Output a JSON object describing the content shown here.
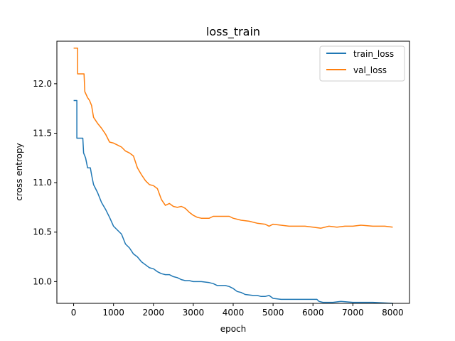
{
  "chart_data": {
    "type": "line",
    "title": "loss_train",
    "xlabel": "epoch",
    "ylabel": "cross entropy",
    "xlim": [
      -420,
      8420
    ],
    "ylim": [
      9.78,
      12.43
    ],
    "xticks": [
      0,
      1000,
      2000,
      3000,
      4000,
      5000,
      6000,
      7000,
      8000
    ],
    "xtick_labels": [
      "0",
      "1000",
      "2000",
      "3000",
      "4000",
      "5000",
      "6000",
      "7000",
      "8000"
    ],
    "yticks": [
      10.0,
      10.5,
      11.0,
      11.5,
      12.0
    ],
    "ytick_labels": [
      "10.0",
      "10.5",
      "11.0",
      "11.5",
      "12.0"
    ],
    "grid": false,
    "legend_position": "top-right",
    "series": [
      {
        "name": "train_loss",
        "color": "#1f77b4",
        "points": [
          [
            0,
            11.83
          ],
          [
            80,
            11.83
          ],
          [
            80,
            11.45
          ],
          [
            120,
            11.45
          ],
          [
            230,
            11.45
          ],
          [
            250,
            11.3
          ],
          [
            300,
            11.25
          ],
          [
            350,
            11.15
          ],
          [
            420,
            11.15
          ],
          [
            450,
            11.08
          ],
          [
            500,
            10.98
          ],
          [
            600,
            10.9
          ],
          [
            700,
            10.8
          ],
          [
            800,
            10.73
          ],
          [
            900,
            10.65
          ],
          [
            1000,
            10.56
          ],
          [
            1100,
            10.52
          ],
          [
            1200,
            10.48
          ],
          [
            1300,
            10.38
          ],
          [
            1400,
            10.34
          ],
          [
            1500,
            10.28
          ],
          [
            1600,
            10.25
          ],
          [
            1700,
            10.2
          ],
          [
            1800,
            10.17
          ],
          [
            1900,
            10.14
          ],
          [
            2000,
            10.13
          ],
          [
            2100,
            10.1
          ],
          [
            2200,
            10.08
          ],
          [
            2300,
            10.07
          ],
          [
            2400,
            10.07
          ],
          [
            2500,
            10.05
          ],
          [
            2600,
            10.04
          ],
          [
            2700,
            10.02
          ],
          [
            2800,
            10.01
          ],
          [
            2900,
            10.01
          ],
          [
            3000,
            10.0
          ],
          [
            3200,
            10.0
          ],
          [
            3400,
            9.99
          ],
          [
            3500,
            9.98
          ],
          [
            3600,
            9.96
          ],
          [
            3800,
            9.96
          ],
          [
            3900,
            9.95
          ],
          [
            4000,
            9.93
          ],
          [
            4100,
            9.9
          ],
          [
            4200,
            9.89
          ],
          [
            4300,
            9.87
          ],
          [
            4500,
            9.86
          ],
          [
            4600,
            9.86
          ],
          [
            4700,
            9.85
          ],
          [
            4800,
            9.85
          ],
          [
            4900,
            9.86
          ],
          [
            5000,
            9.83
          ],
          [
            5200,
            9.82
          ],
          [
            5500,
            9.82
          ],
          [
            5800,
            9.82
          ],
          [
            6100,
            9.82
          ],
          [
            6150,
            9.8
          ],
          [
            6250,
            9.79
          ],
          [
            6500,
            9.79
          ],
          [
            6700,
            9.8
          ],
          [
            7000,
            9.79
          ],
          [
            7500,
            9.79
          ],
          [
            8000,
            9.78
          ]
        ]
      },
      {
        "name": "val_loss",
        "color": "#ff7f0e",
        "points": [
          [
            0,
            12.36
          ],
          [
            100,
            12.36
          ],
          [
            100,
            12.1
          ],
          [
            260,
            12.1
          ],
          [
            280,
            11.92
          ],
          [
            350,
            11.86
          ],
          [
            400,
            11.83
          ],
          [
            450,
            11.78
          ],
          [
            500,
            11.66
          ],
          [
            600,
            11.6
          ],
          [
            700,
            11.55
          ],
          [
            800,
            11.49
          ],
          [
            900,
            11.41
          ],
          [
            1000,
            11.4
          ],
          [
            1100,
            11.38
          ],
          [
            1200,
            11.36
          ],
          [
            1300,
            11.32
          ],
          [
            1400,
            11.3
          ],
          [
            1500,
            11.27
          ],
          [
            1600,
            11.15
          ],
          [
            1700,
            11.08
          ],
          [
            1800,
            11.02
          ],
          [
            1900,
            10.98
          ],
          [
            2000,
            10.97
          ],
          [
            2100,
            10.94
          ],
          [
            2200,
            10.83
          ],
          [
            2300,
            10.77
          ],
          [
            2400,
            10.79
          ],
          [
            2500,
            10.76
          ],
          [
            2600,
            10.75
          ],
          [
            2700,
            10.76
          ],
          [
            2800,
            10.74
          ],
          [
            2900,
            10.7
          ],
          [
            3000,
            10.67
          ],
          [
            3100,
            10.65
          ],
          [
            3200,
            10.64
          ],
          [
            3400,
            10.64
          ],
          [
            3500,
            10.66
          ],
          [
            3700,
            10.66
          ],
          [
            3900,
            10.66
          ],
          [
            4000,
            10.64
          ],
          [
            4200,
            10.62
          ],
          [
            4400,
            10.61
          ],
          [
            4600,
            10.59
          ],
          [
            4800,
            10.58
          ],
          [
            4900,
            10.56
          ],
          [
            5000,
            10.58
          ],
          [
            5200,
            10.57
          ],
          [
            5400,
            10.56
          ],
          [
            5600,
            10.56
          ],
          [
            5800,
            10.56
          ],
          [
            6000,
            10.55
          ],
          [
            6200,
            10.54
          ],
          [
            6400,
            10.56
          ],
          [
            6600,
            10.55
          ],
          [
            6800,
            10.56
          ],
          [
            7000,
            10.56
          ],
          [
            7200,
            10.57
          ],
          [
            7500,
            10.56
          ],
          [
            7800,
            10.56
          ],
          [
            8000,
            10.55
          ]
        ]
      }
    ]
  }
}
